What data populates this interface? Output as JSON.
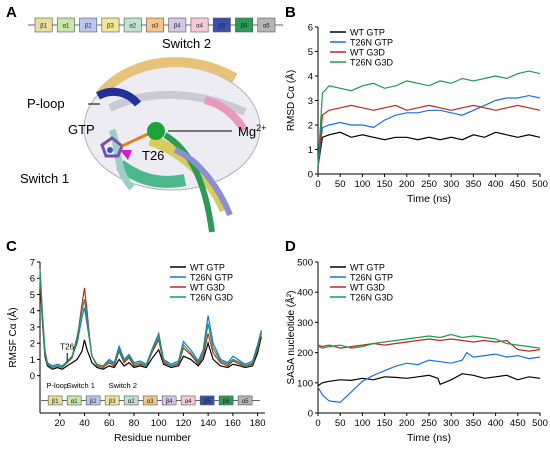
{
  "panels": {
    "a": {
      "letter": "A",
      "labels": {
        "switch2": "Switch 2",
        "ploop": "P-loop",
        "gtp": "GTP",
        "mg": "Mg",
        "mg_sup": "2+",
        "t26": "T26",
        "switch1": "Switch 1"
      },
      "topology": [
        {
          "t": "β1",
          "c": "#e9df9b"
        },
        {
          "t": "α1",
          "c": "#c9e7a8"
        },
        {
          "t": "β2",
          "c": "#b9c8ec"
        },
        {
          "t": "β3",
          "c": "#f2e69a"
        },
        {
          "t": "α2",
          "c": "#bfe3d2"
        },
        {
          "t": "α3",
          "c": "#f4c68e"
        },
        {
          "t": "β4",
          "c": "#d4c6e6"
        },
        {
          "t": "α4",
          "c": "#f6c9d8"
        },
        {
          "t": "β5",
          "c": "#3a4fae"
        },
        {
          "t": "β6",
          "c": "#2f9a55"
        },
        {
          "t": "α5",
          "c": "#b5b5b5"
        }
      ]
    },
    "b": {
      "letter": "B"
    },
    "c": {
      "letter": "C",
      "annotations": {
        "t26": "T26",
        "ploop": "P-loop",
        "switch1": "Switch 1",
        "switch2": "Switch 2"
      }
    },
    "d": {
      "letter": "D"
    }
  },
  "chart_data": [
    {
      "id": "B",
      "type": "line",
      "xlabel": "Time (ns)",
      "ylabel": "RMSD Cα (Å)",
      "xlim": [
        0,
        500
      ],
      "ylim": [
        0,
        6
      ],
      "xticks": [
        0,
        50,
        100,
        150,
        200,
        250,
        300,
        350,
        400,
        450,
        500
      ],
      "yticks": [
        0,
        1,
        2,
        3,
        4,
        5,
        6
      ],
      "legend_position": "top-left",
      "series": [
        {
          "name": "WT GTP",
          "color": "#000000",
          "x": [
            0,
            10,
            25,
            50,
            75,
            100,
            125,
            150,
            175,
            200,
            225,
            250,
            275,
            300,
            325,
            350,
            375,
            400,
            425,
            450,
            475,
            500
          ],
          "y": [
            0.3,
            1.5,
            1.6,
            1.7,
            1.5,
            1.6,
            1.5,
            1.4,
            1.5,
            1.5,
            1.4,
            1.5,
            1.4,
            1.5,
            1.4,
            1.6,
            1.5,
            1.7,
            1.6,
            1.5,
            1.6,
            1.5
          ]
        },
        {
          "name": "T26N GTP",
          "color": "#1f6fe0",
          "x": [
            0,
            10,
            25,
            50,
            75,
            100,
            125,
            150,
            175,
            200,
            225,
            250,
            275,
            300,
            325,
            350,
            375,
            400,
            425,
            450,
            475,
            500
          ],
          "y": [
            0.3,
            1.9,
            2.0,
            2.1,
            2.0,
            2.0,
            1.9,
            2.2,
            2.4,
            2.5,
            2.5,
            2.6,
            2.6,
            2.5,
            2.4,
            2.6,
            2.8,
            3.0,
            3.1,
            3.1,
            3.2,
            3.1
          ]
        },
        {
          "name": "WT G3D",
          "color": "#c0281c",
          "x": [
            0,
            10,
            25,
            50,
            75,
            100,
            125,
            150,
            175,
            200,
            225,
            250,
            275,
            300,
            325,
            350,
            375,
            400,
            425,
            450,
            475,
            500
          ],
          "y": [
            0.3,
            2.4,
            2.6,
            2.7,
            2.8,
            2.7,
            2.6,
            2.7,
            2.8,
            2.6,
            2.7,
            2.8,
            2.7,
            2.6,
            2.7,
            2.8,
            2.7,
            2.6,
            2.7,
            2.8,
            2.7,
            2.6
          ]
        },
        {
          "name": "T26N G3D",
          "color": "#1c9a52",
          "x": [
            0,
            10,
            25,
            50,
            75,
            100,
            125,
            150,
            175,
            200,
            225,
            250,
            275,
            300,
            325,
            350,
            375,
            400,
            425,
            450,
            475,
            500
          ],
          "y": [
            0.3,
            3.3,
            3.6,
            3.5,
            3.4,
            3.6,
            3.7,
            3.5,
            3.6,
            3.8,
            3.7,
            3.6,
            3.8,
            3.7,
            3.9,
            3.8,
            3.9,
            4.0,
            3.9,
            4.1,
            4.2,
            4.1
          ]
        }
      ]
    },
    {
      "id": "C",
      "type": "line",
      "xlabel": "Residue number",
      "ylabel": "RMSF Cα (Å)",
      "xlim": [
        4,
        186
      ],
      "ylim": [
        -2.3,
        7
      ],
      "xticks": [
        20,
        40,
        60,
        80,
        100,
        120,
        140,
        160,
        180
      ],
      "yticks": [
        0,
        1,
        2,
        3,
        4,
        5,
        6,
        7
      ],
      "legend_position": "top-right",
      "series": [
        {
          "name": "WT GTP",
          "color": "#000000",
          "x": [
            4,
            6,
            8,
            10,
            14,
            18,
            22,
            26,
            30,
            34,
            38,
            40,
            42,
            44,
            46,
            50,
            55,
            60,
            64,
            68,
            72,
            76,
            80,
            85,
            90,
            95,
            100,
            104,
            110,
            116,
            120,
            126,
            132,
            136,
            140,
            144,
            150,
            156,
            160,
            166,
            170,
            176,
            180,
            183
          ],
          "y": [
            6.2,
            3.4,
            1.2,
            0.6,
            0.4,
            0.5,
            0.4,
            0.6,
            0.8,
            1.0,
            1.5,
            2.2,
            1.6,
            1.2,
            0.8,
            0.5,
            0.4,
            0.6,
            0.5,
            1.0,
            0.6,
            0.8,
            0.5,
            0.6,
            0.5,
            1.1,
            1.6,
            0.7,
            0.5,
            0.6,
            1.2,
            1.0,
            0.6,
            1.0,
            2.0,
            1.0,
            0.6,
            0.5,
            0.7,
            0.6,
            0.5,
            0.6,
            1.4,
            2.4
          ]
        },
        {
          "name": "T26N GTP",
          "color": "#1f6fe0",
          "x": [
            4,
            6,
            8,
            10,
            14,
            18,
            22,
            26,
            30,
            34,
            38,
            40,
            42,
            44,
            46,
            50,
            55,
            60,
            64,
            68,
            72,
            76,
            80,
            85,
            90,
            95,
            100,
            104,
            110,
            116,
            120,
            126,
            132,
            136,
            140,
            144,
            150,
            156,
            160,
            166,
            170,
            176,
            180,
            183
          ],
          "y": [
            6.6,
            3.8,
            1.6,
            0.8,
            0.6,
            0.7,
            0.6,
            0.9,
            1.2,
            2.0,
            3.6,
            4.2,
            3.2,
            2.2,
            1.2,
            0.7,
            0.6,
            1.0,
            0.8,
            1.8,
            1.0,
            1.3,
            0.8,
            0.9,
            0.7,
            1.7,
            2.6,
            1.0,
            0.7,
            0.9,
            2.1,
            1.6,
            0.9,
            1.6,
            3.7,
            2.0,
            1.0,
            0.8,
            1.2,
            0.9,
            0.7,
            0.9,
            1.9,
            2.8
          ]
        },
        {
          "name": "WT G3D",
          "color": "#c0281c",
          "x": [
            4,
            6,
            8,
            10,
            14,
            18,
            22,
            26,
            30,
            34,
            38,
            40,
            42,
            44,
            46,
            50,
            55,
            60,
            64,
            68,
            72,
            76,
            80,
            85,
            90,
            95,
            100,
            104,
            110,
            116,
            120,
            126,
            132,
            136,
            140,
            144,
            150,
            156,
            160,
            166,
            170,
            176,
            180,
            183
          ],
          "y": [
            6.0,
            3.2,
            1.3,
            0.7,
            0.5,
            0.6,
            0.5,
            0.8,
            1.1,
            2.2,
            4.4,
            5.4,
            4.0,
            2.4,
            1.2,
            0.6,
            0.5,
            0.8,
            0.6,
            1.5,
            0.8,
            1.1,
            0.6,
            0.7,
            0.6,
            1.5,
            2.2,
            0.8,
            0.6,
            0.7,
            1.7,
            1.3,
            0.7,
            1.2,
            2.6,
            1.4,
            0.8,
            0.6,
            0.9,
            0.7,
            0.6,
            0.7,
            1.6,
            2.6
          ]
        },
        {
          "name": "T26N G3D",
          "color": "#1c9a52",
          "x": [
            4,
            6,
            8,
            10,
            14,
            18,
            22,
            26,
            30,
            34,
            38,
            40,
            42,
            44,
            46,
            50,
            55,
            60,
            64,
            68,
            72,
            76,
            80,
            85,
            90,
            95,
            100,
            104,
            110,
            116,
            120,
            126,
            132,
            136,
            140,
            144,
            150,
            156,
            160,
            166,
            170,
            176,
            180,
            183
          ],
          "y": [
            6.4,
            3.5,
            1.4,
            0.7,
            0.5,
            0.6,
            0.5,
            0.8,
            1.2,
            2.4,
            4.0,
            4.7,
            3.6,
            2.3,
            1.2,
            0.7,
            0.6,
            0.9,
            0.7,
            1.6,
            0.9,
            1.2,
            0.7,
            0.8,
            0.6,
            1.6,
            2.4,
            0.9,
            0.6,
            0.8,
            1.9,
            1.4,
            0.8,
            1.4,
            3.2,
            1.7,
            0.9,
            0.7,
            1.0,
            0.8,
            0.6,
            0.8,
            1.7,
            2.7
          ]
        }
      ]
    },
    {
      "id": "D",
      "type": "line",
      "xlabel": "Time (ns)",
      "ylabel": "SASA nucleotide (Å²)",
      "xlim": [
        0,
        500
      ],
      "ylim": [
        0,
        500
      ],
      "xticks": [
        0,
        50,
        100,
        150,
        200,
        250,
        300,
        350,
        400,
        450,
        500
      ],
      "yticks": [
        0,
        100,
        200,
        300,
        400,
        500
      ],
      "legend_position": "top-left",
      "series": [
        {
          "name": "WT GTP",
          "color": "#000000",
          "x": [
            0,
            10,
            25,
            50,
            75,
            100,
            125,
            150,
            175,
            200,
            225,
            250,
            270,
            275,
            300,
            325,
            350,
            375,
            400,
            425,
            450,
            475,
            500
          ],
          "y": [
            90,
            100,
            105,
            110,
            108,
            115,
            110,
            120,
            118,
            115,
            120,
            125,
            115,
            95,
            110,
            130,
            125,
            115,
            120,
            125,
            110,
            120,
            115
          ]
        },
        {
          "name": "T26N GTP",
          "color": "#1f6fe0",
          "x": [
            0,
            10,
            25,
            50,
            75,
            100,
            125,
            150,
            175,
            200,
            225,
            250,
            275,
            300,
            325,
            335,
            350,
            375,
            400,
            425,
            450,
            475,
            500
          ],
          "y": [
            85,
            60,
            40,
            35,
            70,
            105,
            125,
            140,
            155,
            165,
            160,
            175,
            170,
            165,
            175,
            200,
            185,
            190,
            195,
            185,
            190,
            180,
            185
          ]
        },
        {
          "name": "WT G3D",
          "color": "#c0281c",
          "x": [
            0,
            10,
            25,
            50,
            75,
            100,
            125,
            150,
            175,
            200,
            225,
            250,
            275,
            300,
            325,
            350,
            375,
            400,
            425,
            450,
            475,
            500
          ],
          "y": [
            225,
            220,
            225,
            215,
            220,
            225,
            230,
            225,
            230,
            235,
            240,
            245,
            240,
            245,
            240,
            235,
            240,
            235,
            240,
            210,
            205,
            210
          ]
        },
        {
          "name": "T26N G3D",
          "color": "#1c9a52",
          "x": [
            0,
            10,
            25,
            50,
            75,
            100,
            125,
            150,
            175,
            200,
            225,
            250,
            275,
            300,
            325,
            350,
            375,
            400,
            425,
            450,
            475,
            500
          ],
          "y": [
            220,
            215,
            220,
            225,
            215,
            220,
            230,
            235,
            240,
            245,
            250,
            255,
            250,
            260,
            250,
            255,
            250,
            245,
            230,
            225,
            220,
            215
          ]
        }
      ]
    }
  ]
}
